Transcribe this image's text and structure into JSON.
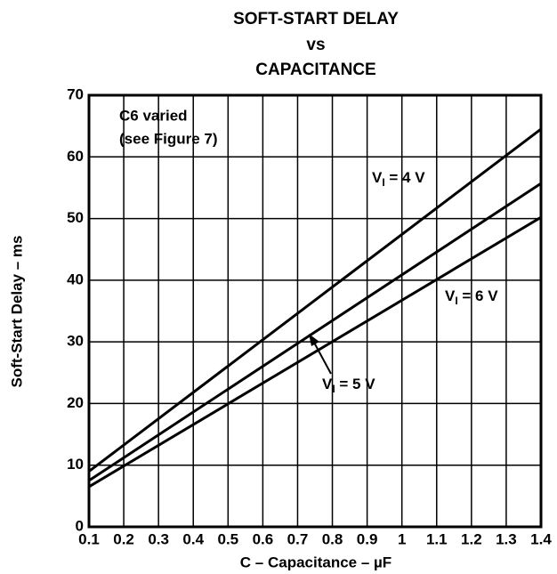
{
  "chart_data": {
    "type": "line",
    "title": [
      "SOFT-START DELAY",
      "vs",
      "CAPACITANCE"
    ],
    "x_label": "C – Capacitance – µF",
    "y_label": "Soft-Start Delay – ms",
    "annotations": [
      "C6 varied",
      "(see Figure 7)"
    ],
    "x": [
      0.1,
      1.4
    ],
    "series": [
      {
        "name": "VI = 4 V",
        "color": "#000000",
        "values": [
          9,
          64.5
        ]
      },
      {
        "name": "VI = 5 V",
        "color": "#000000",
        "values": [
          7.5,
          55.7
        ]
      },
      {
        "name": "VI = 6 V",
        "color": "#000000",
        "values": [
          6.5,
          50.2
        ]
      }
    ],
    "xlim": [
      0.1,
      1.4
    ],
    "xticks": [
      0.1,
      0.2,
      0.3,
      0.4,
      0.5,
      0.6,
      0.7,
      0.8,
      0.9,
      1,
      1.1,
      1.2,
      1.3,
      1.4
    ],
    "ylim": [
      0,
      70
    ],
    "yticks": [
      0,
      10,
      20,
      30,
      40,
      50,
      60,
      70
    ],
    "grid": true
  }
}
